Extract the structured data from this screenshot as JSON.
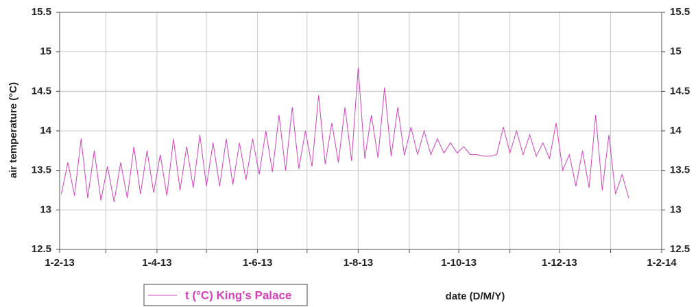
{
  "chart_data": {
    "type": "line",
    "y_label": "air temperature (°C)",
    "x_label": "date (D/M/Y)",
    "xlim": [
      "2013-02-01",
      "2014-02-01"
    ],
    "xticks": [
      {
        "value": "2013-02-01",
        "label": "1-2-13"
      },
      {
        "value": "2013-03-01",
        "label": null
      },
      {
        "value": "2013-04-01",
        "label": "1-4-13"
      },
      {
        "value": "2013-05-01",
        "label": null
      },
      {
        "value": "2013-06-01",
        "label": "1-6-13"
      },
      {
        "value": "2013-07-01",
        "label": null
      },
      {
        "value": "2013-08-01",
        "label": "1-8-13"
      },
      {
        "value": "2013-09-01",
        "label": null
      },
      {
        "value": "2013-10-01",
        "label": "1-10-13"
      },
      {
        "value": "2013-11-01",
        "label": null
      },
      {
        "value": "2013-12-01",
        "label": "1-12-13"
      },
      {
        "value": "2014-01-01",
        "label": null
      },
      {
        "value": "2014-02-01",
        "label": "1-2-14"
      }
    ],
    "ylim": [
      12.5,
      15.5
    ],
    "yticks": [
      12.5,
      13,
      13.5,
      14,
      14.5,
      15,
      15.5
    ],
    "y2lim": [
      12.5,
      15.5
    ],
    "y2ticks": [
      12.5,
      13,
      13.5,
      14,
      14.5,
      15,
      15.5
    ],
    "grid": true,
    "legend": "bottom-left",
    "x": [
      "2013-02-02",
      "2013-02-06",
      "2013-02-10",
      "2013-02-14",
      "2013-02-18",
      "2013-02-22",
      "2013-02-26",
      "2013-03-02",
      "2013-03-06",
      "2013-03-10",
      "2013-03-14",
      "2013-03-18",
      "2013-03-22",
      "2013-03-26",
      "2013-03-30",
      "2013-04-03",
      "2013-04-07",
      "2013-04-11",
      "2013-04-15",
      "2013-04-19",
      "2013-04-23",
      "2013-04-27",
      "2013-05-01",
      "2013-05-05",
      "2013-05-09",
      "2013-05-13",
      "2013-05-17",
      "2013-05-21",
      "2013-05-25",
      "2013-05-29",
      "2013-06-02",
      "2013-06-06",
      "2013-06-10",
      "2013-06-14",
      "2013-06-18",
      "2013-06-22",
      "2013-06-26",
      "2013-06-30",
      "2013-07-04",
      "2013-07-08",
      "2013-07-12",
      "2013-07-16",
      "2013-07-20",
      "2013-07-24",
      "2013-07-28",
      "2013-08-01",
      "2013-08-05",
      "2013-08-09",
      "2013-08-13",
      "2013-08-17",
      "2013-08-21",
      "2013-08-25",
      "2013-08-29",
      "2013-09-02",
      "2013-09-06",
      "2013-09-10",
      "2013-09-14",
      "2013-09-18",
      "2013-09-22",
      "2013-09-26",
      "2013-09-30",
      "2013-10-04",
      "2013-10-08",
      "2013-10-12",
      "2013-10-16",
      "2013-10-20",
      "2013-10-24",
      "2013-10-28",
      "2013-11-01",
      "2013-11-05",
      "2013-11-09",
      "2013-11-13",
      "2013-11-17",
      "2013-11-21",
      "2013-11-25",
      "2013-11-29",
      "2013-12-03",
      "2013-12-07",
      "2013-12-11",
      "2013-12-15",
      "2013-12-19",
      "2013-12-23",
      "2013-12-27",
      "2013-12-31",
      "2014-01-04",
      "2014-01-08",
      "2014-01-12"
    ],
    "series": [
      {
        "name": "t (°C) King's Palace",
        "color": "#d63fc0",
        "values": [
          13.2,
          13.6,
          13.18,
          13.9,
          13.15,
          13.75,
          13.12,
          13.55,
          13.1,
          13.6,
          13.15,
          13.8,
          13.2,
          13.75,
          13.22,
          13.7,
          13.18,
          13.9,
          13.25,
          13.8,
          13.28,
          13.95,
          13.3,
          13.85,
          13.3,
          13.9,
          13.32,
          13.85,
          13.38,
          13.9,
          13.45,
          14.0,
          13.48,
          14.2,
          13.5,
          14.3,
          13.52,
          14.0,
          13.55,
          14.45,
          13.58,
          14.1,
          13.6,
          14.3,
          13.62,
          14.8,
          13.65,
          14.2,
          13.66,
          14.55,
          13.68,
          14.3,
          13.69,
          14.05,
          13.7,
          14.0,
          13.7,
          13.9,
          13.72,
          13.85,
          13.72,
          13.8,
          13.7,
          13.7,
          13.68,
          13.68,
          13.7,
          14.05,
          13.72,
          14.0,
          13.7,
          13.95,
          13.68,
          13.85,
          13.65,
          14.1,
          13.5,
          13.7,
          13.3,
          13.75,
          13.28,
          14.2,
          13.25,
          13.95,
          13.2,
          13.45,
          13.15
        ]
      }
    ]
  }
}
